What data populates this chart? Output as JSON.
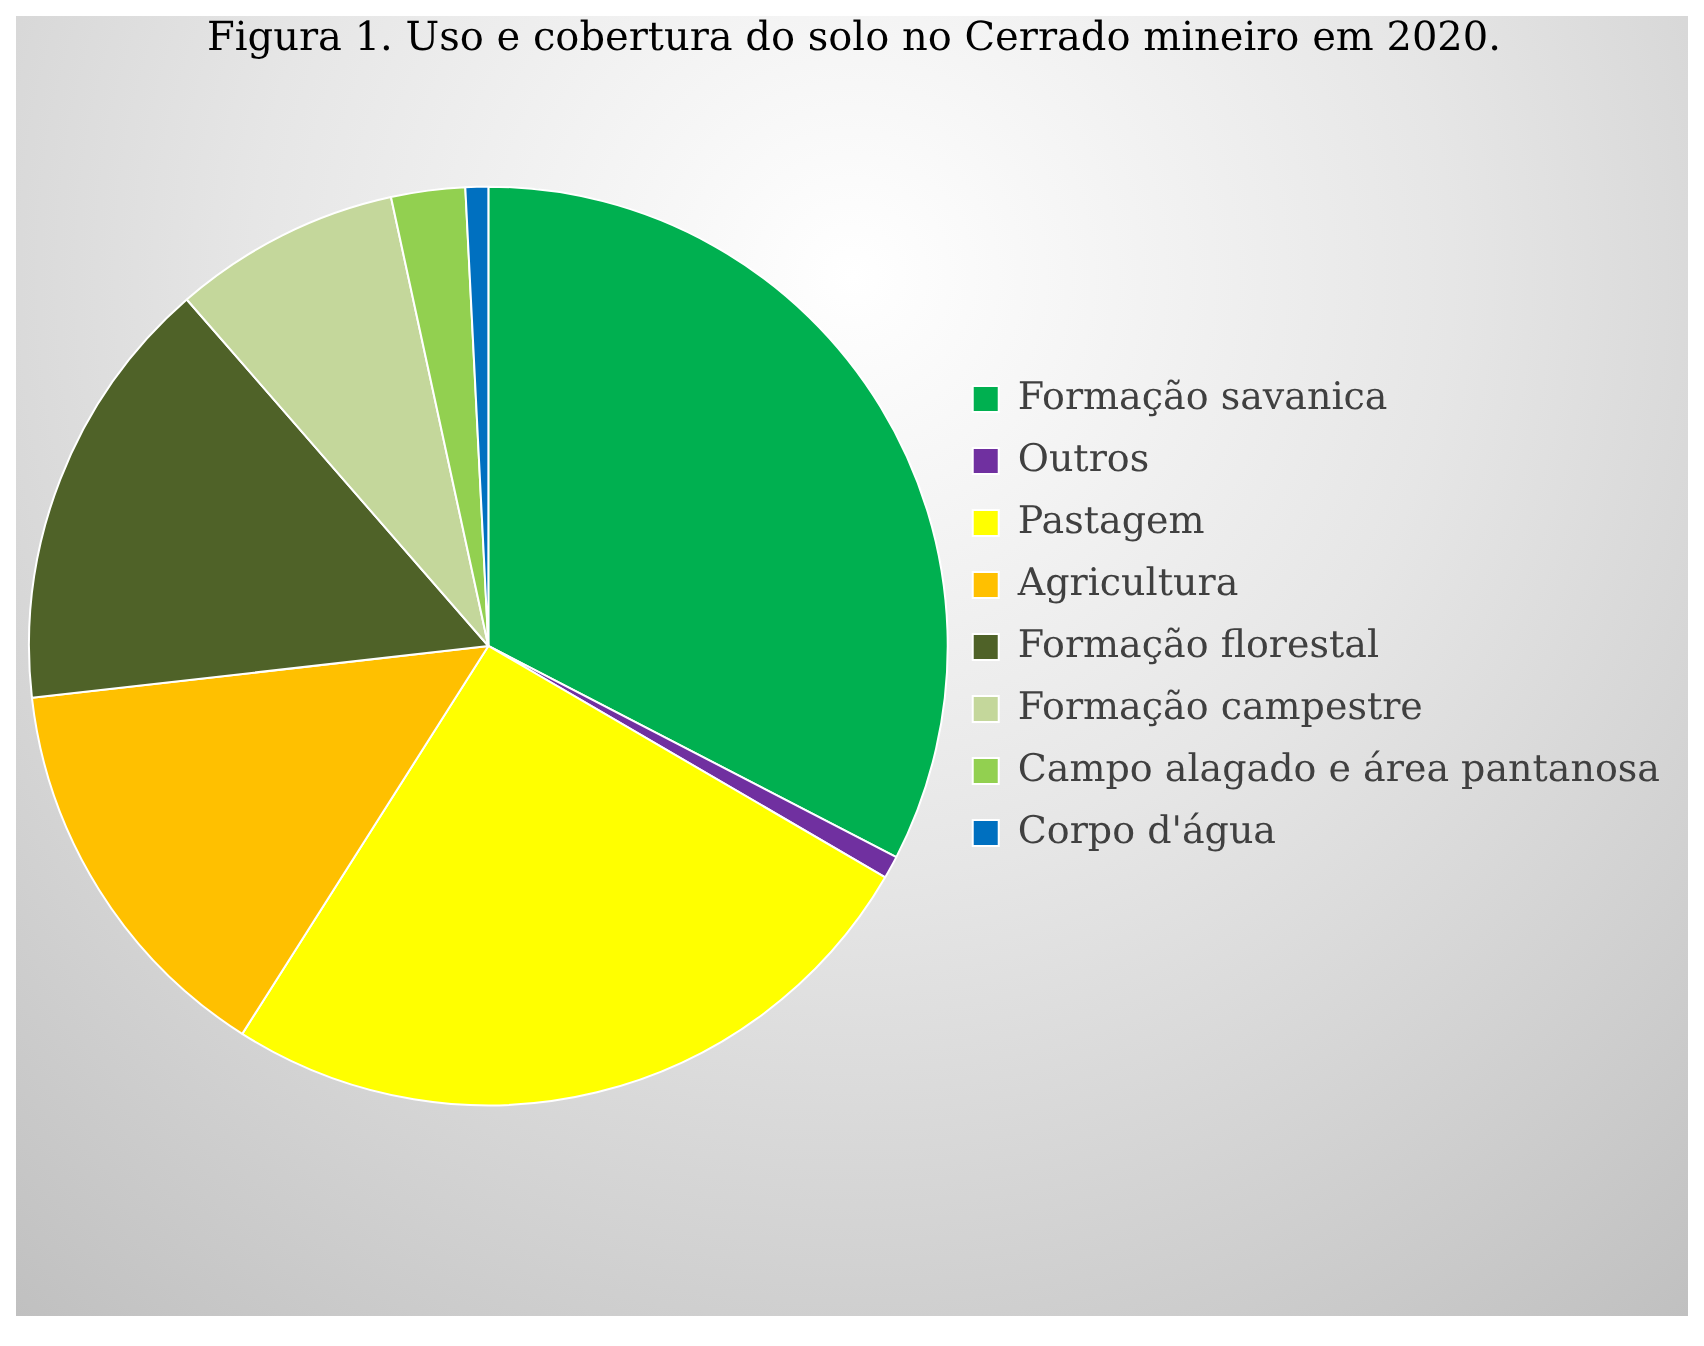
{
  "chart_data": {
    "type": "pie",
    "title": "Figura 1. Uso e cobertura do solo no Cerrado mineiro em 2020.",
    "categories": [
      "Formação savanica",
      "Outros",
      "Pastagem",
      "Agricultura",
      "Formação florestal",
      "Formação campestre",
      "Campo alagado e área pantanosa",
      "Corpo d'água"
    ],
    "values": [
      32.6,
      0.8,
      25.6,
      14.2,
      15.4,
      8.0,
      2.6,
      0.8
    ],
    "colors": [
      "#00b050",
      "#7030a0",
      "#ffff00",
      "#ffc000",
      "#4f6228",
      "#c4d79b",
      "#92d050",
      "#0070c0"
    ],
    "legend": "right"
  }
}
